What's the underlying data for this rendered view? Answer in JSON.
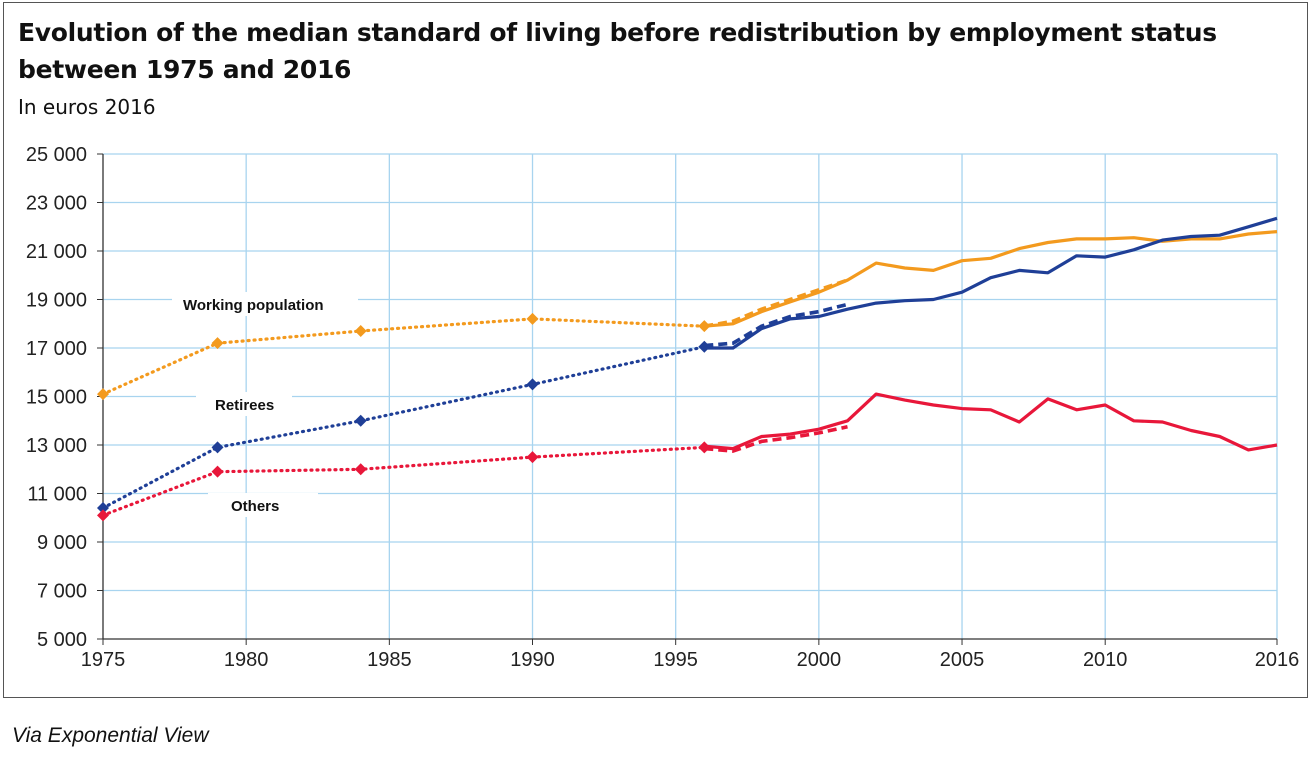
{
  "title": "Evolution of the median standard of living before redistribution by employment status between 1975 and 2016",
  "subtitle": "In euros 2016",
  "source": "Via Exponential View",
  "chart_data": {
    "type": "line",
    "title": "Evolution of the median standard of living before redistribution by employment status between 1975 and 2016",
    "subtitle": "In euros 2016",
    "xlabel": "",
    "ylabel": "",
    "xlim": [
      1975,
      2016
    ],
    "ylim": [
      5000,
      25000
    ],
    "x_ticks": [
      1975,
      1980,
      1985,
      1990,
      1995,
      2000,
      2005,
      2010,
      2016
    ],
    "x_tick_labels": [
      "1975",
      "1980",
      "1985",
      "1990",
      "1995",
      "2000",
      "2005",
      "2010",
      "2016"
    ],
    "y_ticks": [
      5000,
      7000,
      9000,
      11000,
      13000,
      15000,
      17000,
      19000,
      21000,
      23000,
      25000
    ],
    "y_tick_labels": [
      "5 000",
      "7 000",
      "9 000",
      "11 000",
      "13 000",
      "15 000",
      "17 000",
      "19 000",
      "21 000",
      "23 000",
      "25 000"
    ],
    "grid": true,
    "series": [
      {
        "name": "Working population",
        "color": "#f39a1e",
        "early_points": [
          [
            1975,
            15100
          ],
          [
            1979,
            17200
          ],
          [
            1984,
            17700
          ],
          [
            1990,
            18200
          ],
          [
            1996,
            17900
          ]
        ],
        "solid": [
          [
            1996,
            17900
          ],
          [
            1997,
            18000
          ],
          [
            1998,
            18500
          ],
          [
            1999,
            18900
          ],
          [
            2000,
            19300
          ],
          [
            2001,
            19800
          ],
          [
            2002,
            20500
          ],
          [
            2003,
            20300
          ],
          [
            2004,
            20200
          ],
          [
            2005,
            20600
          ],
          [
            2006,
            20700
          ],
          [
            2007,
            21100
          ],
          [
            2008,
            21350
          ],
          [
            2009,
            21500
          ],
          [
            2010,
            21500
          ],
          [
            2011,
            21550
          ],
          [
            2012,
            21400
          ],
          [
            2013,
            21500
          ],
          [
            2014,
            21500
          ],
          [
            2015,
            21700
          ],
          [
            2016,
            21800
          ]
        ],
        "dashed": [
          [
            1996,
            17900
          ],
          [
            1997,
            18100
          ],
          [
            1998,
            18600
          ],
          [
            1999,
            19000
          ],
          [
            2000,
            19400
          ],
          [
            2001,
            19800
          ]
        ]
      },
      {
        "name": "Retirees",
        "color": "#1f3f97",
        "early_points": [
          [
            1975,
            10400
          ],
          [
            1979,
            12900
          ],
          [
            1984,
            14000
          ],
          [
            1990,
            15500
          ],
          [
            1996,
            17050
          ]
        ],
        "solid": [
          [
            1996,
            17000
          ],
          [
            1997,
            17000
          ],
          [
            1998,
            17800
          ],
          [
            1999,
            18200
          ],
          [
            2000,
            18300
          ],
          [
            2001,
            18600
          ],
          [
            2002,
            18850
          ],
          [
            2003,
            18950
          ],
          [
            2004,
            19000
          ],
          [
            2005,
            19300
          ],
          [
            2006,
            19900
          ],
          [
            2007,
            20200
          ],
          [
            2008,
            20100
          ],
          [
            2009,
            20800
          ],
          [
            2010,
            20750
          ],
          [
            2011,
            21050
          ],
          [
            2012,
            21450
          ],
          [
            2013,
            21600
          ],
          [
            2014,
            21650
          ],
          [
            2015,
            22000
          ],
          [
            2016,
            22350
          ]
        ],
        "dashed": [
          [
            1996,
            17100
          ],
          [
            1997,
            17200
          ],
          [
            1998,
            17900
          ],
          [
            1999,
            18300
          ],
          [
            2000,
            18500
          ],
          [
            2001,
            18800
          ]
        ]
      },
      {
        "name": "Others",
        "color": "#e8173a",
        "early_points": [
          [
            1975,
            10100
          ],
          [
            1979,
            11900
          ],
          [
            1984,
            12000
          ],
          [
            1990,
            12500
          ],
          [
            1996,
            12900
          ]
        ],
        "solid": [
          [
            1996,
            12950
          ],
          [
            1997,
            12850
          ],
          [
            1998,
            13350
          ],
          [
            1999,
            13450
          ],
          [
            2000,
            13650
          ],
          [
            2001,
            14000
          ],
          [
            2002,
            15100
          ],
          [
            2003,
            14850
          ],
          [
            2004,
            14650
          ],
          [
            2005,
            14500
          ],
          [
            2006,
            14450
          ],
          [
            2007,
            13950
          ],
          [
            2008,
            14900
          ],
          [
            2009,
            14450
          ],
          [
            2010,
            14650
          ],
          [
            2011,
            14000
          ],
          [
            2012,
            13950
          ],
          [
            2013,
            13600
          ],
          [
            2014,
            13350
          ],
          [
            2015,
            12800
          ],
          [
            2016,
            13000
          ]
        ],
        "dashed": [
          [
            1996,
            12850
          ],
          [
            1997,
            12750
          ],
          [
            1998,
            13150
          ],
          [
            1999,
            13300
          ],
          [
            2000,
            13500
          ],
          [
            2001,
            13750
          ]
        ]
      }
    ],
    "annotations": [
      "Working population",
      "Retirees",
      "Others"
    ]
  }
}
